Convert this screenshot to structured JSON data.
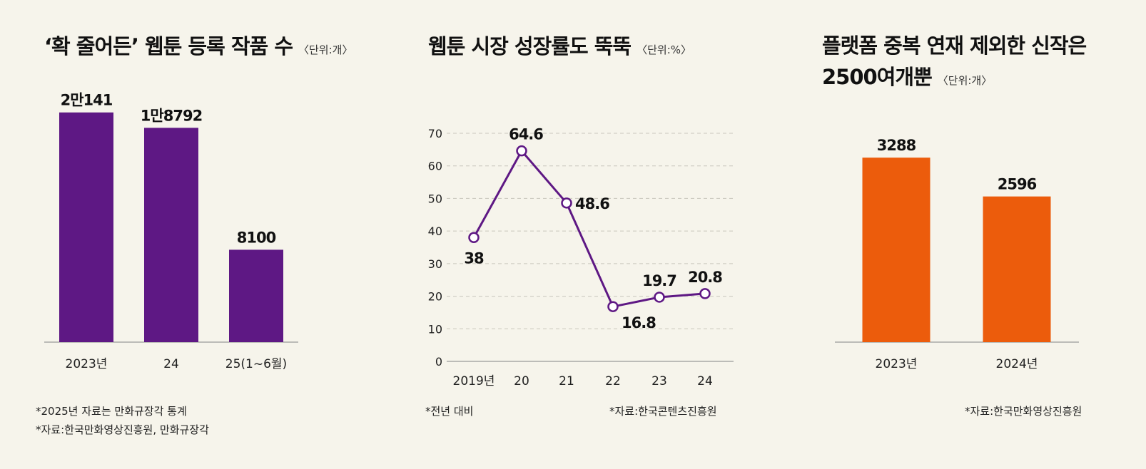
{
  "colors": {
    "background": "#f6f4eb",
    "purple": "#5e1884",
    "orange": "#ec5c0c",
    "grid": "#c9c6bc",
    "axis": "#9a9a9a"
  },
  "panel1": {
    "title": "‘확 줄어든’ 웹툰 등록 작품 수",
    "unit": "〈단위:개〉",
    "notes": [
      "*2025년 자료는 만화규장각 통계",
      "*자료:한국만화영상진흥원, 만화규장각"
    ]
  },
  "panel2": {
    "title": "웹툰 시장 성장률도 뚝뚝",
    "unit": "〈단위:%〉",
    "note_left": "*전년 대비",
    "note_right": "*자료:한국콘텐츠진흥원"
  },
  "panel3": {
    "title_line1": "플랫폼 중복 연재 제외한 신작은",
    "title_line2": "2500여개뿐",
    "unit": "〈단위:개〉",
    "note": "*자료:한국만화영상진흥원"
  },
  "chart_data": [
    {
      "type": "bar",
      "title": "‘확 줄어든’ 웹툰 등록 작품 수",
      "unit": "〈단위:개〉",
      "categories": [
        "2023년",
        "24",
        "25(1~6월)"
      ],
      "values": [
        20141,
        18792,
        8100
      ],
      "value_labels": [
        "2만141",
        "1만8792",
        "8100"
      ],
      "ylim": [
        0,
        22000
      ],
      "color": "#5e1884"
    },
    {
      "type": "line",
      "title": "웹툰 시장 성장률도 뚝뚝",
      "unit": "〈단위:%〉",
      "categories": [
        "2019년",
        "20",
        "21",
        "22",
        "23",
        "24"
      ],
      "values": [
        38,
        64.6,
        48.6,
        16.8,
        19.7,
        20.8
      ],
      "value_labels": [
        "38",
        "64.6",
        "48.6",
        "16.8",
        "19.7",
        "20.8"
      ],
      "yticks": [
        "0",
        "10",
        "20",
        "30",
        "40",
        "50",
        "60",
        "70"
      ],
      "ylim": [
        0,
        70
      ],
      "grid": true,
      "color": "#5e1884"
    },
    {
      "type": "bar",
      "title": "플랫폼 중복 연재 제외한 신작은 2500여개뿐",
      "unit": "〈단위:개〉",
      "categories": [
        "2023년",
        "2024년"
      ],
      "values": [
        3288,
        2596
      ],
      "value_labels": [
        "3288",
        "2596"
      ],
      "ylim": [
        0,
        4700
      ],
      "color": "#ec5c0c"
    }
  ]
}
